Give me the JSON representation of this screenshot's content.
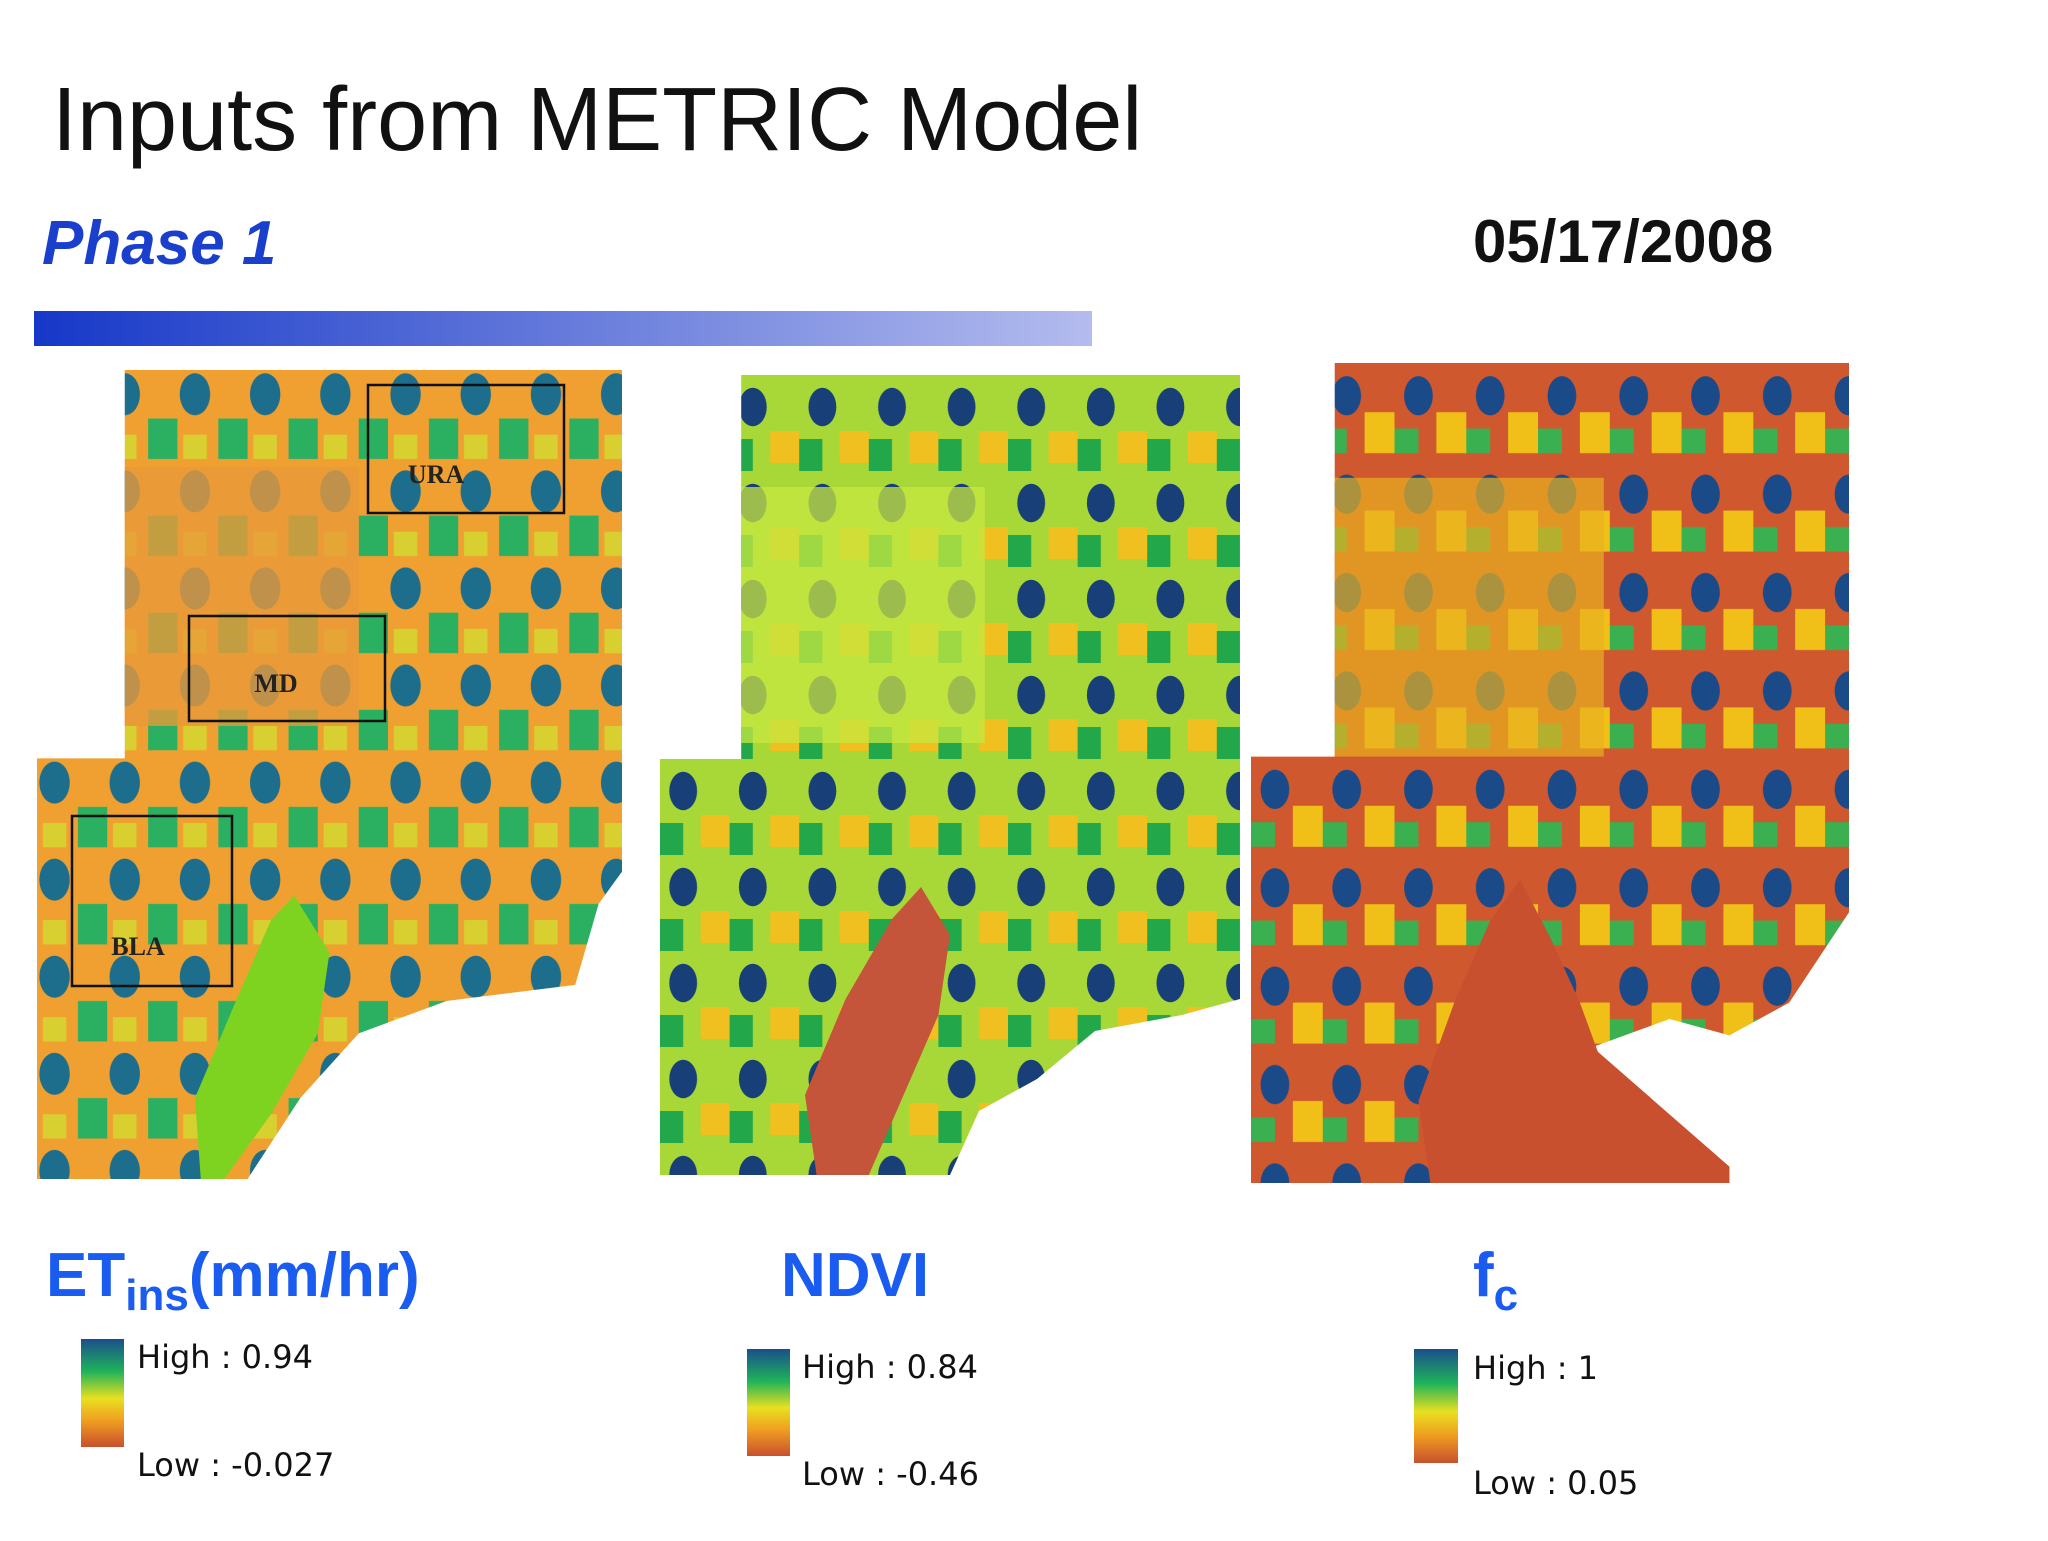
{
  "header": {
    "title": "Inputs from METRIC Model",
    "subtitle": "Phase 1",
    "date": "05/17/2008"
  },
  "panels": [
    {
      "label": {
        "main": "ET",
        "sub": "ins",
        "tail": "(mm/hr)"
      },
      "legend": {
        "high": "High : 0.94",
        "low": "Low : -0.027"
      },
      "boxes": [
        "URA",
        "MD",
        "BLA"
      ]
    },
    {
      "label": {
        "main": "NDVI"
      },
      "legend": {
        "high": "High : 0.84",
        "low": "Low : -0.46"
      }
    },
    {
      "label": {
        "main": "f",
        "sub": "c"
      },
      "legend": {
        "high": "High : 1",
        "low": "Low : 0.05"
      }
    }
  ]
}
